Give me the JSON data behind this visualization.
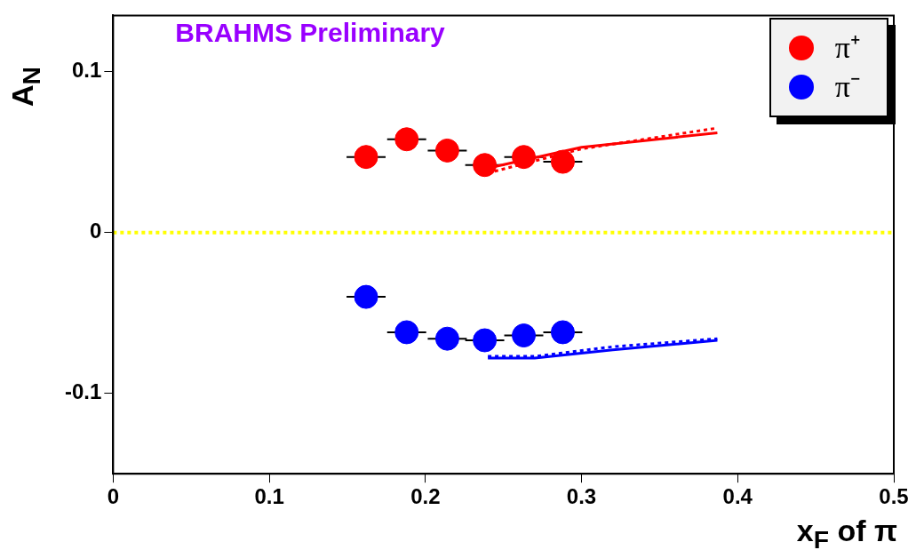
{
  "chart_data": {
    "type": "scatter",
    "xlabel": "x$_{F}$ of π",
    "ylabel": "A$_{N}$",
    "annotations": [
      "BRAHMS Preliminary"
    ],
    "xlim": [
      0,
      0.5
    ],
    "xticks": [
      0,
      0.1,
      0.2,
      0.3,
      0.4,
      0.5
    ],
    "ylim": [
      -0.15,
      0.135
    ],
    "yticks": [
      -0.1,
      0,
      0.1
    ],
    "legend": "top right",
    "grid": false,
    "series": [
      {
        "name": "π⁺",
        "color": "#ff0000",
        "marker": "circle",
        "x": [
          0.162,
          0.188,
          0.214,
          0.238,
          0.263,
          0.288
        ],
        "values": [
          0.047,
          0.058,
          0.051,
          0.042,
          0.047,
          0.044
        ],
        "xerrors": [
          0.0125,
          0.0125,
          0.0125,
          0.0125,
          0.0125,
          0.0125
        ]
      },
      {
        "name": "π⁻",
        "color": "#0000ff",
        "marker": "circle",
        "x": [
          0.162,
          0.188,
          0.214,
          0.238,
          0.263,
          0.288
        ],
        "values": [
          -0.04,
          -0.062,
          -0.066,
          -0.067,
          -0.064,
          -0.062
        ],
        "xerrors": [
          0.0125,
          0.0125,
          0.0125,
          0.0125,
          0.0125,
          0.0125
        ]
      },
      {
        "type": "line",
        "color": "#ff0000",
        "line_style": "solid",
        "marker": "none",
        "x": [
          0.24,
          0.3,
          0.387
        ],
        "values": [
          0.04,
          0.053,
          0.062
        ]
      },
      {
        "type": "line",
        "color": "#ff0000",
        "line_style": "dotted",
        "marker": "none",
        "x": [
          0.24,
          0.3,
          0.387
        ],
        "values": [
          0.037,
          0.052,
          0.065
        ]
      },
      {
        "type": "line",
        "color": "#0000ff",
        "line_style": "solid",
        "marker": "none",
        "x": [
          0.24,
          0.27,
          0.32,
          0.387
        ],
        "values": [
          -0.078,
          -0.078,
          -0.073,
          -0.067
        ]
      },
      {
        "type": "line",
        "color": "#0000ff",
        "line_style": "dotted",
        "marker": "none",
        "x": [
          0.24,
          0.27,
          0.32,
          0.387
        ],
        "values": [
          -0.077,
          -0.077,
          -0.071,
          -0.066
        ]
      }
    ],
    "ref_lines": [
      {
        "axis": "y",
        "value": 0,
        "color": "#ffff00",
        "line_style": "dotted"
      }
    ]
  }
}
